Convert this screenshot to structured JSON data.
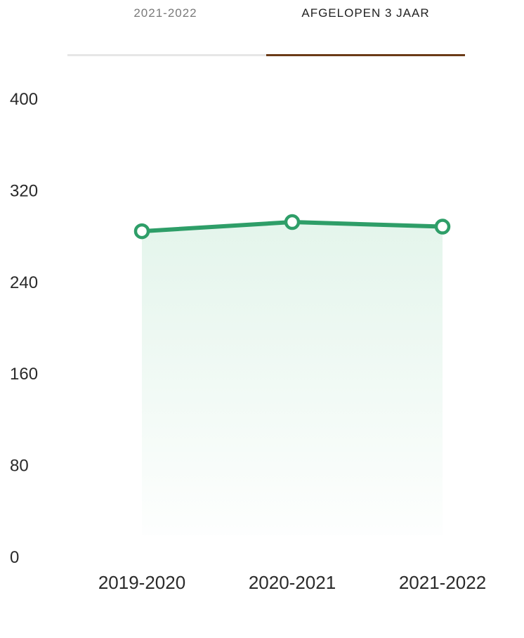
{
  "tabs": [
    {
      "label": "2021-2022",
      "active": false
    },
    {
      "label": "AFGELOPEN 3 JAAR",
      "active": true
    }
  ],
  "colors": {
    "line": "#2e9e68",
    "area": "#dff3e8",
    "active_tab_underline": "#6b3b17",
    "inactive_tab_underline": "#e6e6e6"
  },
  "chart_data": {
    "type": "line",
    "categories": [
      "2019-2020",
      "2020-2021",
      "2021-2022"
    ],
    "values": [
      284,
      292,
      288
    ],
    "yticks": [
      "0",
      "80",
      "160",
      "240",
      "320",
      "400"
    ],
    "ylim": [
      0,
      400
    ],
    "grid": false,
    "area_fill": true,
    "markers": "hollow-circle"
  }
}
